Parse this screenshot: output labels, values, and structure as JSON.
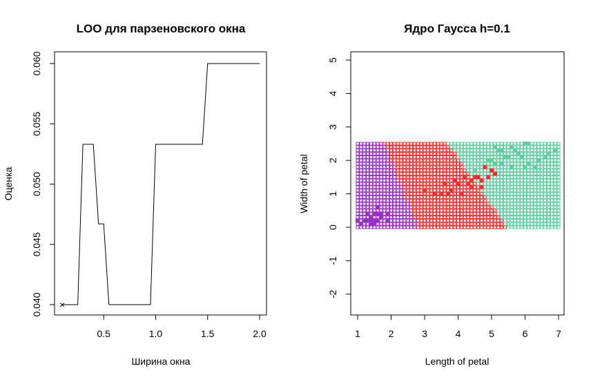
{
  "chart_data": [
    {
      "type": "line",
      "title": "LOO для парзеновского окна",
      "xlabel": "Ширина окна",
      "ylabel": "Оценка",
      "xlim": [
        0.1,
        2.0
      ],
      "ylim": [
        0.04,
        0.06
      ],
      "xticks": [
        "0.5",
        "1.0",
        "1.5",
        "2.0"
      ],
      "yticks": [
        "0.040",
        "0.045",
        "0.050",
        "0.055",
        "0.060"
      ],
      "x": [
        0.1,
        0.25,
        0.3,
        0.35,
        0.4,
        0.45,
        0.5,
        0.55,
        0.6,
        0.65,
        0.7,
        0.75,
        0.8,
        0.85,
        0.9,
        0.95,
        1.0,
        1.05,
        1.1,
        1.15,
        1.2,
        1.25,
        1.3,
        1.35,
        1.4,
        1.45,
        1.5,
        1.55,
        1.6,
        1.65,
        1.7,
        1.75,
        1.8,
        1.85,
        1.9,
        1.95,
        2.0
      ],
      "y": [
        0.04,
        0.04,
        0.0533,
        0.0533,
        0.0533,
        0.0467,
        0.0467,
        0.04,
        0.04,
        0.04,
        0.04,
        0.04,
        0.04,
        0.04,
        0.04,
        0.04,
        0.0533,
        0.0533,
        0.0533,
        0.0533,
        0.0533,
        0.0533,
        0.0533,
        0.0533,
        0.0533,
        0.0533,
        0.06,
        0.06,
        0.06,
        0.06,
        0.06,
        0.06,
        0.06,
        0.06,
        0.06,
        0.06,
        0.06
      ],
      "min_marker": {
        "x": 0.1,
        "y": 0.04,
        "symbol": "×",
        "color": "#ff0000"
      }
    },
    {
      "type": "scatter",
      "title": "Ядро Гаусса h=0.1",
      "xlabel": "Length of petal",
      "ylabel": "Width of petal",
      "xlim": [
        0.8,
        7.1
      ],
      "ylim": [
        -2.6,
        5.2
      ],
      "xticks": [
        "1",
        "2",
        "3",
        "4",
        "5",
        "6",
        "7"
      ],
      "yticks": [
        "-2",
        "-1",
        "0",
        "1",
        "2",
        "3",
        "4",
        "5"
      ],
      "classes": [
        {
          "color": "#9b30c8",
          "fill": "#9b30c8"
        },
        {
          "color": "#ff2a2a",
          "fill": "#ff2a2a"
        },
        {
          "color": "#5fcf9f",
          "fill": "#5fcf9f"
        }
      ],
      "grid_x": [
        1.0,
        7.0
      ],
      "grid_y": [
        0.0,
        2.5
      ],
      "grid_step": 0.1,
      "boundaries": {
        "b1_x_at_y0": 2.8,
        "b1_x_at_y25": 1.8,
        "b2_x_at_y0": 5.45,
        "b2_x_at_y25": 3.7
      },
      "points": [
        {
          "x": 1.4,
          "y": 0.2,
          "c": 0
        },
        {
          "x": 1.3,
          "y": 0.2,
          "c": 0
        },
        {
          "x": 1.5,
          "y": 0.2,
          "c": 0
        },
        {
          "x": 1.4,
          "y": 0.3,
          "c": 0
        },
        {
          "x": 1.7,
          "y": 0.4,
          "c": 0
        },
        {
          "x": 1.5,
          "y": 0.1,
          "c": 0
        },
        {
          "x": 1.6,
          "y": 0.2,
          "c": 0
        },
        {
          "x": 1.1,
          "y": 0.1,
          "c": 0
        },
        {
          "x": 1.2,
          "y": 0.2,
          "c": 0
        },
        {
          "x": 1.5,
          "y": 0.4,
          "c": 0
        },
        {
          "x": 1.3,
          "y": 0.4,
          "c": 0
        },
        {
          "x": 1.7,
          "y": 0.3,
          "c": 0
        },
        {
          "x": 1.0,
          "y": 0.2,
          "c": 0
        },
        {
          "x": 1.9,
          "y": 0.2,
          "c": 0
        },
        {
          "x": 1.6,
          "y": 0.6,
          "c": 0
        },
        {
          "x": 1.4,
          "y": 0.1,
          "c": 0
        },
        {
          "x": 1.6,
          "y": 0.4,
          "c": 0
        },
        {
          "x": 1.9,
          "y": 0.4,
          "c": 0
        },
        {
          "x": 4.7,
          "y": 1.4,
          "c": 1
        },
        {
          "x": 4.5,
          "y": 1.5,
          "c": 1
        },
        {
          "x": 4.9,
          "y": 1.5,
          "c": 1
        },
        {
          "x": 4.0,
          "y": 1.3,
          "c": 1
        },
        {
          "x": 4.6,
          "y": 1.5,
          "c": 1
        },
        {
          "x": 3.3,
          "y": 1.0,
          "c": 1
        },
        {
          "x": 3.9,
          "y": 1.4,
          "c": 1
        },
        {
          "x": 3.5,
          "y": 1.0,
          "c": 1
        },
        {
          "x": 4.2,
          "y": 1.5,
          "c": 1
        },
        {
          "x": 3.6,
          "y": 1.3,
          "c": 1
        },
        {
          "x": 4.4,
          "y": 1.4,
          "c": 1
        },
        {
          "x": 4.1,
          "y": 1.0,
          "c": 1
        },
        {
          "x": 4.8,
          "y": 1.8,
          "c": 1
        },
        {
          "x": 4.3,
          "y": 1.3,
          "c": 1
        },
        {
          "x": 5.0,
          "y": 1.7,
          "c": 1
        },
        {
          "x": 3.8,
          "y": 1.1,
          "c": 1
        },
        {
          "x": 3.7,
          "y": 1.0,
          "c": 1
        },
        {
          "x": 5.1,
          "y": 1.6,
          "c": 1
        },
        {
          "x": 3.0,
          "y": 1.1,
          "c": 1
        },
        {
          "x": 4.7,
          "y": 1.2,
          "c": 1
        },
        {
          "x": 4.4,
          "y": 1.2,
          "c": 1
        },
        {
          "x": 6.0,
          "y": 2.5,
          "c": 2
        },
        {
          "x": 5.1,
          "y": 1.9,
          "c": 2
        },
        {
          "x": 5.9,
          "y": 2.1,
          "c": 2
        },
        {
          "x": 5.6,
          "y": 1.8,
          "c": 2
        },
        {
          "x": 5.8,
          "y": 2.2,
          "c": 2
        },
        {
          "x": 6.6,
          "y": 2.1,
          "c": 2
        },
        {
          "x": 4.5,
          "y": 1.7,
          "c": 2
        },
        {
          "x": 6.3,
          "y": 1.8,
          "c": 2
        },
        {
          "x": 6.1,
          "y": 2.5,
          "c": 2
        },
        {
          "x": 5.3,
          "y": 1.9,
          "c": 2
        },
        {
          "x": 5.5,
          "y": 2.1,
          "c": 2
        },
        {
          "x": 5.0,
          "y": 2.0,
          "c": 2
        },
        {
          "x": 5.1,
          "y": 2.4,
          "c": 2
        },
        {
          "x": 5.3,
          "y": 2.3,
          "c": 2
        },
        {
          "x": 6.7,
          "y": 2.2,
          "c": 2
        },
        {
          "x": 6.9,
          "y": 2.3,
          "c": 2
        },
        {
          "x": 5.7,
          "y": 2.3,
          "c": 2
        },
        {
          "x": 4.9,
          "y": 2.0,
          "c": 2
        },
        {
          "x": 6.4,
          "y": 2.0,
          "c": 2
        },
        {
          "x": 5.4,
          "y": 2.1,
          "c": 2
        },
        {
          "x": 5.6,
          "y": 2.4,
          "c": 2
        },
        {
          "x": 6.1,
          "y": 1.9,
          "c": 2
        },
        {
          "x": 5.2,
          "y": 2.3,
          "c": 2
        },
        {
          "x": 6.0,
          "y": 1.8,
          "c": 2
        }
      ]
    }
  ]
}
